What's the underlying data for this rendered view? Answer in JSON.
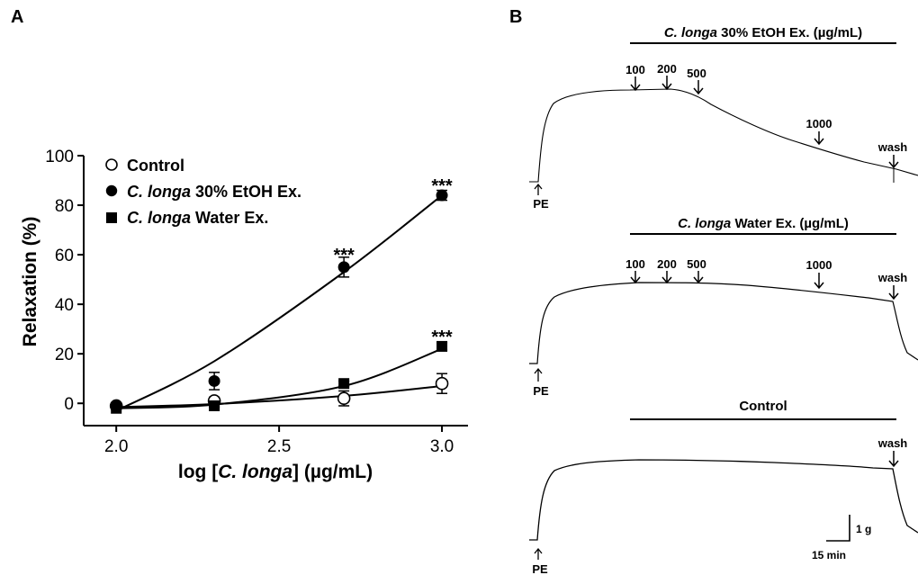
{
  "panels": {
    "a_label": "A",
    "b_label": "B"
  },
  "chart_data": [
    {
      "type": "scatter",
      "title": "",
      "xlabel": {
        "prefix": "log [",
        "italic": "C. longa",
        "suffix": "] (µg/mL)"
      },
      "ylabel": "Relaxation (%)",
      "xlim": [
        1.9,
        3.08
      ],
      "ylim": [
        -9,
        100
      ],
      "xticks": [
        "2.0",
        "2.5",
        "3.0"
      ],
      "xtick_values": [
        2.0,
        2.5,
        3.0
      ],
      "yticks": [
        "0",
        "20",
        "40",
        "60",
        "80",
        "100"
      ],
      "ytick_values": [
        0,
        20,
        40,
        60,
        80,
        100
      ],
      "grid": false,
      "legend_position": "top-left",
      "series": [
        {
          "name": "Control",
          "legend_italic": "",
          "legend_rest": "Control",
          "marker": "open-circle",
          "x": [
            2.0,
            2.301,
            2.699,
            3.0
          ],
          "y": [
            -1,
            1,
            2,
            8
          ],
          "err": [
            1,
            1.5,
            3,
            4
          ],
          "fit": [
            -1.5,
            -0.3,
            3,
            7
          ]
        },
        {
          "name": "C. longa 30% EtOH Ex.",
          "legend_italic": "C. longa",
          "legend_rest": " 30% EtOH Ex.",
          "marker": "filled-circle",
          "x": [
            2.0,
            2.301,
            2.699,
            3.0
          ],
          "y": [
            -1,
            9,
            55,
            84
          ],
          "err": [
            1,
            3.5,
            4,
            2
          ],
          "fit": [
            -3,
            17,
            53,
            84
          ]
        },
        {
          "name": "C. longa Water Ex.",
          "legend_italic": "C. longa",
          "legend_rest": " Water Ex.",
          "marker": "filled-square",
          "x": [
            2.0,
            2.301,
            2.699,
            3.0
          ],
          "y": [
            -2,
            -1,
            8,
            23
          ],
          "err": [
            0.5,
            0.5,
            1,
            1.5
          ],
          "fit": [
            -2,
            -0.5,
            7,
            22
          ]
        }
      ],
      "annotations": [
        {
          "text": "***",
          "x": 2.699,
          "y": 60
        },
        {
          "text": "***",
          "x": 3.0,
          "y": 88
        },
        {
          "text": "***",
          "x": 3.0,
          "y": 27
        }
      ]
    },
    {
      "type": "line",
      "description_label": "tension traces",
      "traces": [
        {
          "header_italic": "C. longa",
          "header_rest": " 30% EtOH Ex. (µg/mL)",
          "start_label": "PE",
          "doses": [
            "100",
            "200",
            "500",
            "1000",
            "wash"
          ]
        },
        {
          "header_italic": "C. longa",
          "header_rest": " Water Ex. (µg/mL)",
          "start_label": "PE",
          "doses": [
            "100",
            "200",
            "500",
            "1000",
            "wash"
          ]
        },
        {
          "header_italic": "",
          "header_rest": "Control",
          "start_label": "PE",
          "doses": [
            "wash"
          ]
        }
      ],
      "scale_bar": {
        "vertical": "1 g",
        "horizontal": "15 min"
      }
    }
  ]
}
